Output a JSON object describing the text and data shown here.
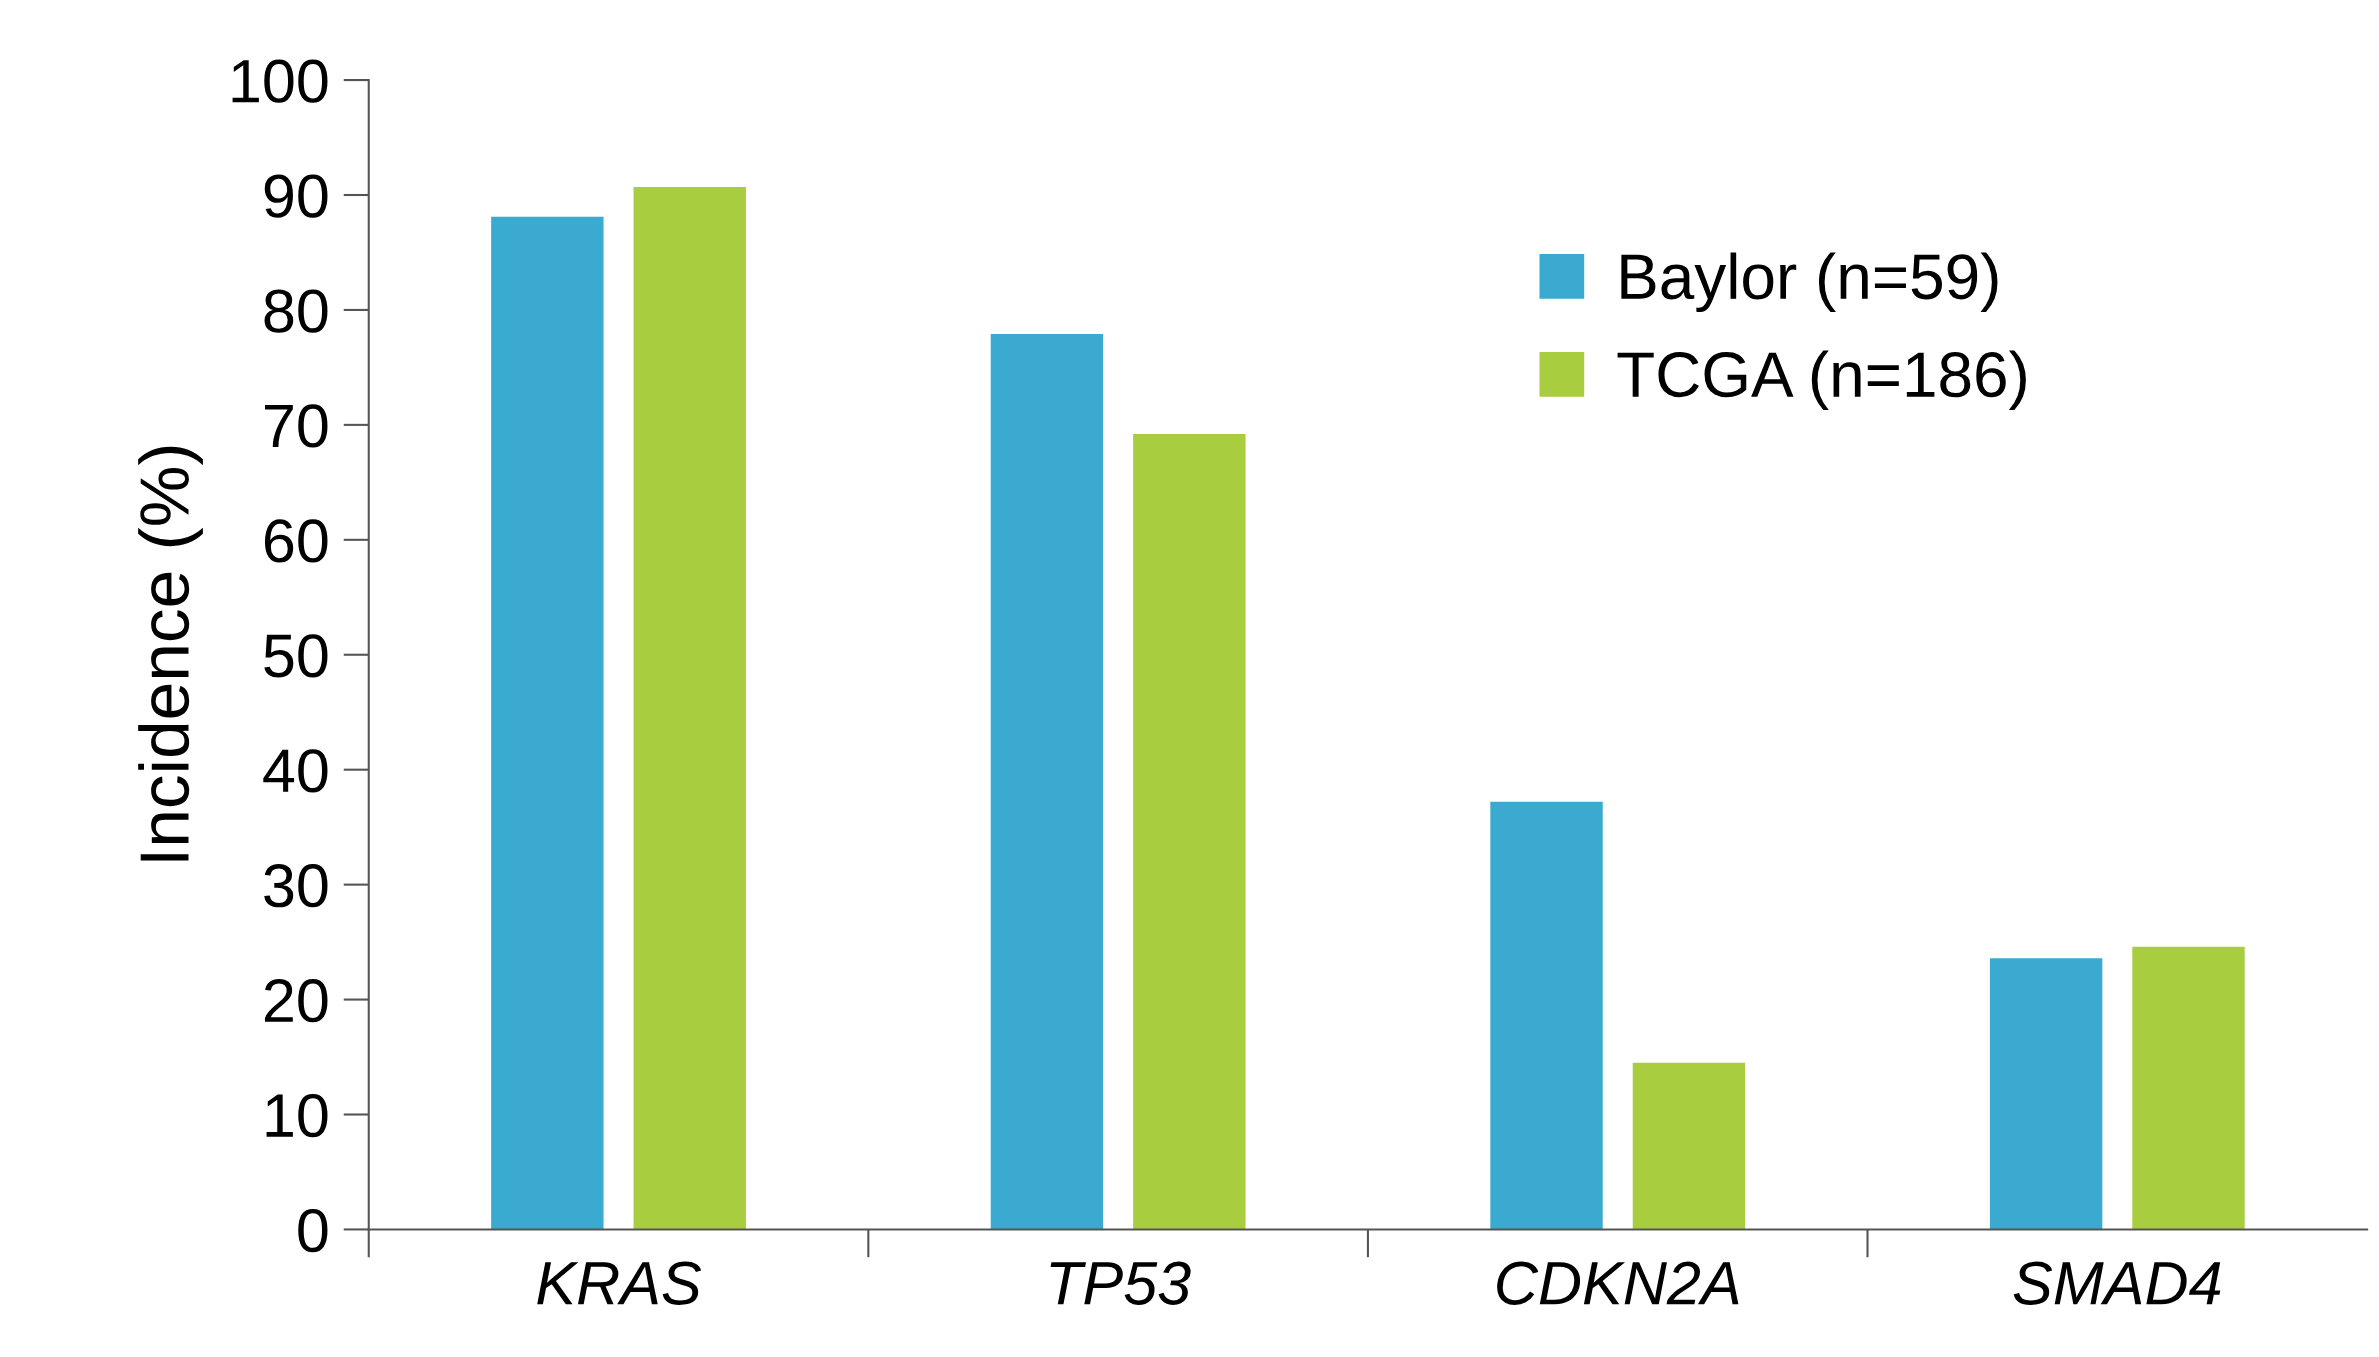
{
  "chart_data": {
    "type": "bar",
    "ylabel": "Incidence (%)",
    "categories": [
      "KRAS",
      "TP53",
      "CDKN2A",
      "SMAD4"
    ],
    "series": [
      {
        "name": "Baylor (n=59)",
        "color": "#3aaad0",
        "values": [
          88.1,
          77.9,
          37.2,
          23.6
        ]
      },
      {
        "name": "TCGA (n=186)",
        "color": "#a8cd3e",
        "values": [
          90.7,
          69.2,
          14.5,
          24.6
        ]
      }
    ],
    "ylim": [
      0,
      100
    ],
    "yticks": [
      0,
      10,
      20,
      30,
      40,
      50,
      60,
      70,
      80,
      90,
      100
    ],
    "grid": false,
    "legend": "top right"
  }
}
